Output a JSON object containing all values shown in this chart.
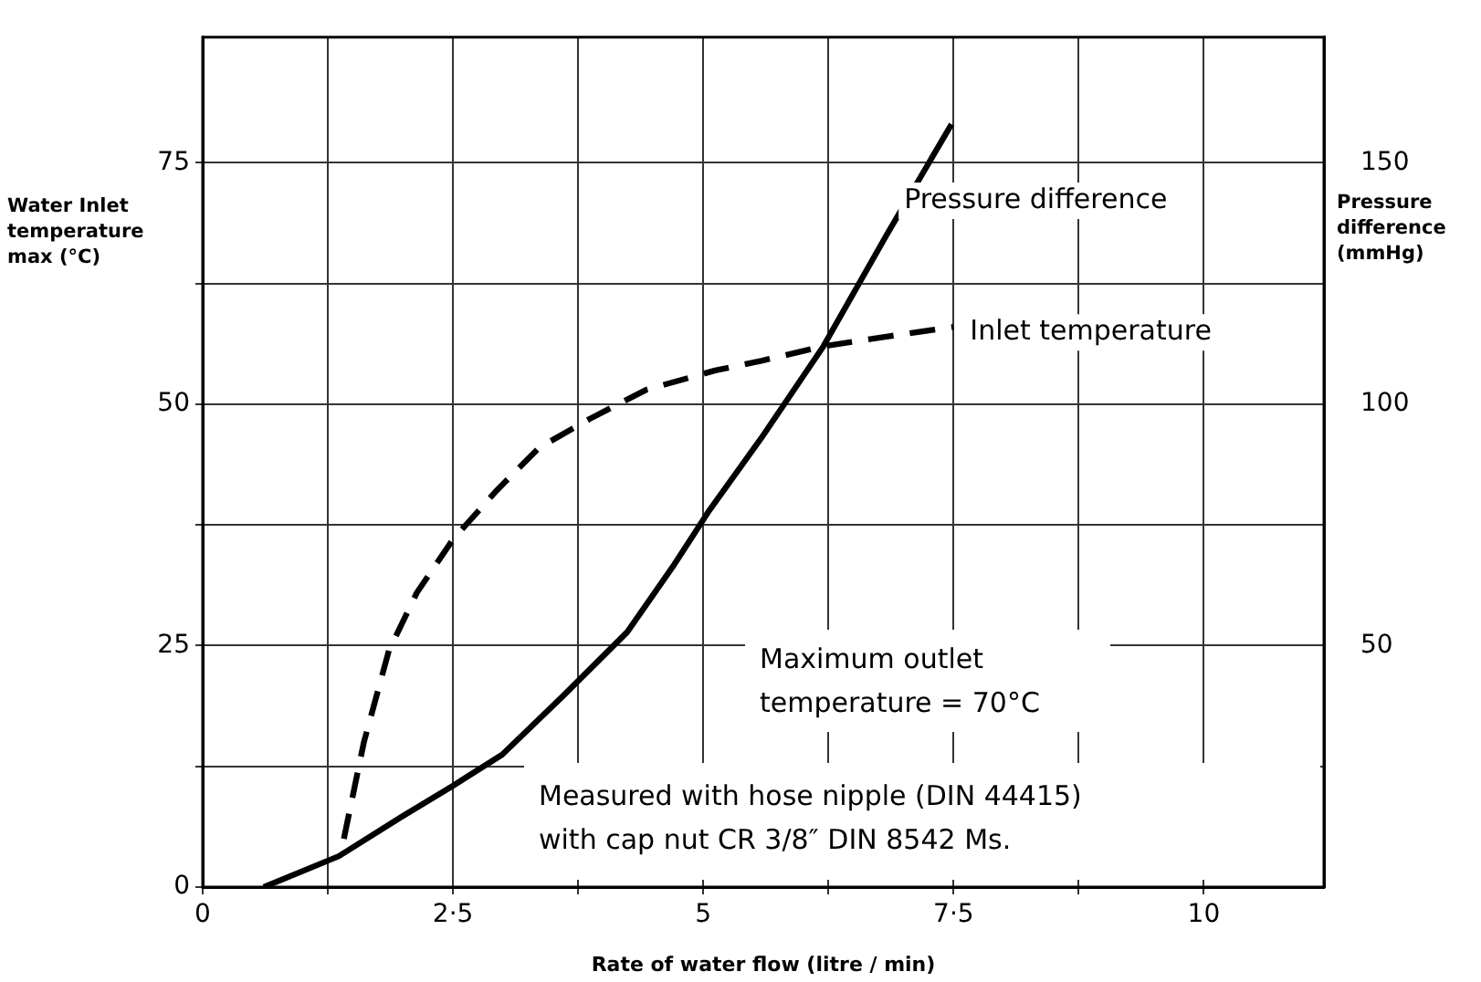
{
  "chart_data": {
    "type": "line",
    "xlabel": "Rate of water flow (litre / min)",
    "ylabel": "Water Inlet temperature max (°C)",
    "y2label": "Pressure difference (mmHg)",
    "xlim": [
      0,
      11.2
    ],
    "ylim": [
      0,
      88
    ],
    "y2lim": [
      0,
      176
    ],
    "xticks": [
      0,
      {
        "value": 1.25,
        "label": null
      },
      {
        "value": 2.5,
        "label": "2·5"
      },
      {
        "value": 3.75,
        "label": null
      },
      5,
      {
        "value": 6.25,
        "label": null
      },
      {
        "value": 7.5,
        "label": "7·5"
      },
      {
        "value": 8.75,
        "label": null
      },
      10
    ],
    "yticks": [
      0,
      {
        "value": 12.5,
        "label": null
      },
      25,
      {
        "value": 37.5,
        "label": null
      },
      50,
      {
        "value": 62.5,
        "label": null
      },
      75
    ],
    "y2ticks": [
      50,
      100,
      150
    ],
    "grid": true,
    "legend": false,
    "marker": "none",
    "series": [
      {
        "name": "Pressure difference",
        "color": "#000000",
        "axis": "y2",
        "line_style": "solid",
        "x": [
          0.61,
          1.36,
          1.99,
          2.5,
          2.99,
          3.62,
          4.24,
          4.71,
          5.06,
          5.58,
          6.2,
          6.83,
          7.48
        ],
        "values": [
          0,
          6.4,
          14.6,
          21,
          27.4,
          40,
          52.8,
          66.8,
          78,
          93,
          112,
          135,
          158
        ]
      },
      {
        "name": "Inlet temperature",
        "color": "#000000",
        "line_style": "dashed",
        "x": [
          1.41,
          1.61,
          1.86,
          2.14,
          2.5,
          2.93,
          3.36,
          3.87,
          4.43,
          5.12,
          5.58,
          6.2,
          6.83,
          7.5
        ],
        "values": [
          5,
          15,
          24.5,
          30.5,
          36,
          41,
          45.5,
          48.5,
          51.5,
          53.5,
          54.5,
          56,
          57,
          58
        ]
      }
    ],
    "annotations": [
      "Maximum outlet temperature = 70°C",
      "Measured with hose nipple (DIN 44415)\nwith cap nut CR 3/8″ DIN 8542 Ms."
    ]
  }
}
